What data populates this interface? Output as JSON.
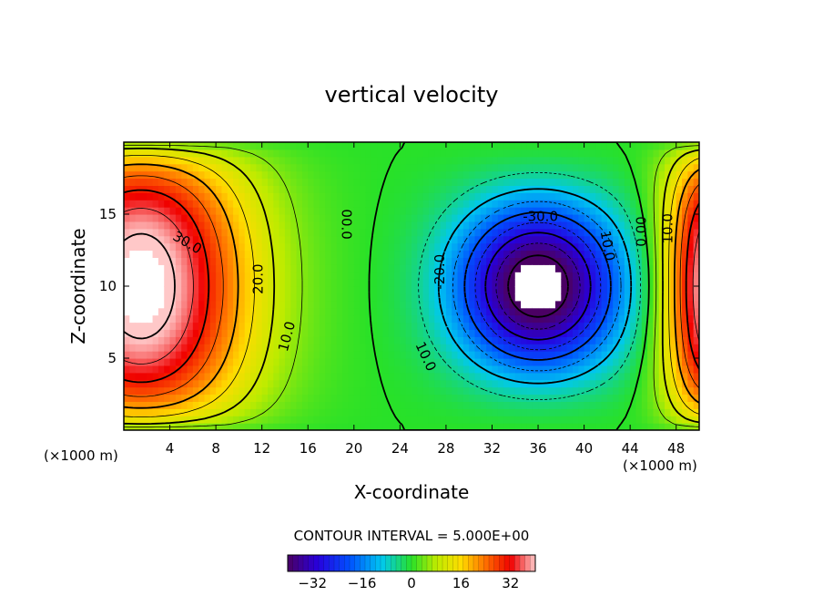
{
  "chart_data": {
    "type": "heatmap",
    "title": "vertical velocity",
    "xlabel": "X-coordinate",
    "ylabel": "Z-coordinate",
    "x_unit_left": "(×1000 m)",
    "x_unit_right": "(×1000 m)",
    "xlim": [
      0,
      50
    ],
    "ylim": [
      0,
      20
    ],
    "x_ticks": [
      4,
      8,
      12,
      16,
      20,
      24,
      28,
      32,
      36,
      40,
      44,
      48
    ],
    "y_ticks": [
      5,
      10,
      15
    ],
    "grid": false,
    "contour_interval_text": "CONTOUR INTERVAL = 5.000E+00",
    "contour_interval": 5,
    "colorbar": {
      "range": [
        -40,
        40
      ],
      "ticks": [
        -32,
        -16,
        0,
        16,
        32
      ],
      "tick_labels": [
        "−32",
        "−16",
        "0",
        "16",
        "32"
      ]
    },
    "features": [
      {
        "kind": "updraft",
        "x": 2,
        "z": 9,
        "peak": 45
      },
      {
        "kind": "downdraft",
        "x": 36,
        "z": 10,
        "peak": -45
      },
      {
        "kind": "updraft",
        "x": 50,
        "z": 9,
        "peak": 40
      }
    ],
    "contour_labels": [
      {
        "text": "30.0",
        "x": 5.5,
        "z": 13.0,
        "angle": 30
      },
      {
        "text": "20.0",
        "x": 11.7,
        "z": 10.5,
        "angle": -90
      },
      {
        "text": "10.0",
        "x": 14.2,
        "z": 6.5,
        "angle": -75
      },
      {
        "text": "00.0",
        "x": 19.3,
        "z": 14.3,
        "angle": 90
      },
      {
        "text": "-20.0",
        "x": 27.5,
        "z": 11.0,
        "angle": -90
      },
      {
        "text": "10.0",
        "x": 26.2,
        "z": 5.1,
        "angle": 65
      },
      {
        "text": "-30.0",
        "x": 36.2,
        "z": 14.8,
        "angle": 0
      },
      {
        "text": "10.0",
        "x": 42.0,
        "z": 12.8,
        "angle": 80
      },
      {
        "text": "0.00",
        "x": 45.0,
        "z": 13.8,
        "angle": -90
      },
      {
        "text": "10.0",
        "x": 47.3,
        "z": 14.0,
        "angle": -90
      }
    ]
  }
}
